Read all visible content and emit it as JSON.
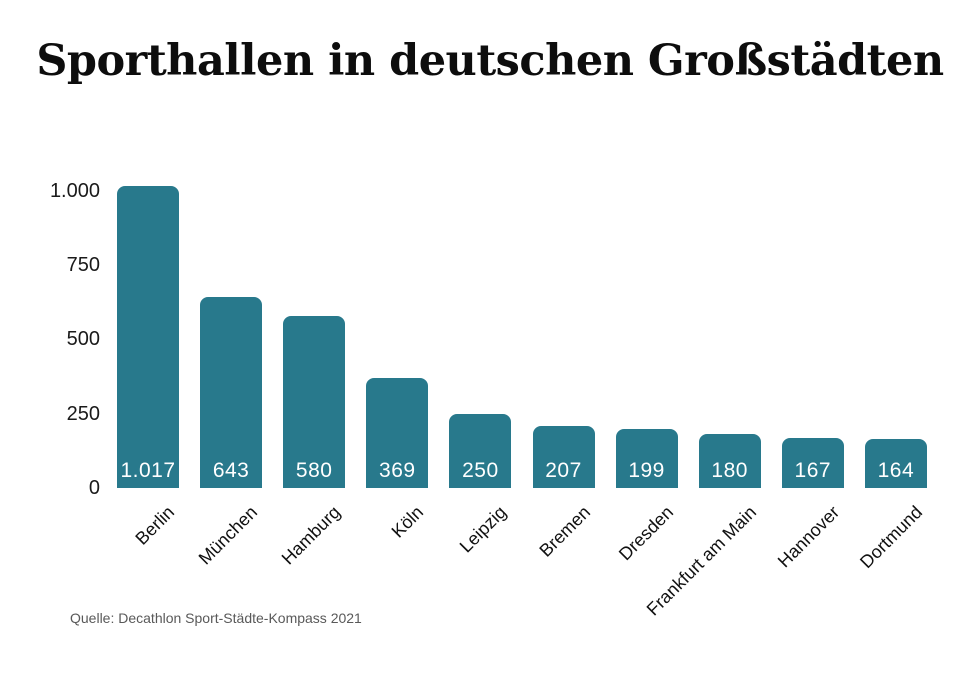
{
  "page": {
    "background_color": "#ffffff"
  },
  "header": {
    "title": "Sporthallen in deutschen Großstädten"
  },
  "chart_data": {
    "type": "bar",
    "title": "Sporthallen in deutschen Großstädten",
    "categories": [
      "Berlin",
      "München",
      "Hamburg",
      "Köln",
      "Leipzig",
      "Bremen",
      "Dresden",
      "Frankfurt am Main",
      "Hannover",
      "Dortmund"
    ],
    "values": [
      1017,
      643,
      580,
      369,
      250,
      207,
      199,
      180,
      167,
      164
    ],
    "value_labels": [
      "1.017",
      "643",
      "580",
      "369",
      "250",
      "207",
      "199",
      "180",
      "167",
      "164"
    ],
    "xlabel": "",
    "ylabel": "",
    "ylim": [
      0,
      1000
    ],
    "y_ticks": [
      {
        "value": 0,
        "label": "0"
      },
      {
        "value": 250,
        "label": "250"
      },
      {
        "value": 500,
        "label": "500"
      },
      {
        "value": 750,
        "label": "750"
      },
      {
        "value": 1000,
        "label": "1.000"
      }
    ],
    "grid": false,
    "legend": false,
    "bar_color": "#28798c",
    "value_label_color": "#ffffff",
    "axis_label_color": "#1a1a1a"
  },
  "footer": {
    "source": "Quelle: Decathlon Sport-Städte-Kompass 2021"
  }
}
